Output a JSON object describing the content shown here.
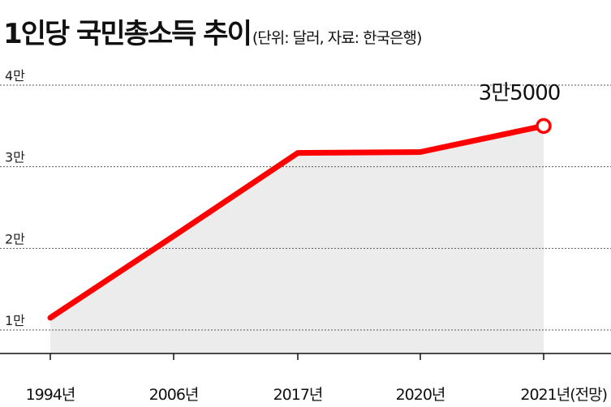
{
  "title": "1인당 국민총소득 추이",
  "subtitle": "(단위: 달러, 자료: 한국은행)",
  "chart_data": {
    "type": "line",
    "title": "1인당 국민총소득 추이",
    "subtitle": "(단위: 달러, 자료: 한국은행)",
    "categories": [
      "1994년",
      "2006년",
      "2017년",
      "2020년",
      "2021년(전망)"
    ],
    "series": [
      {
        "values": [
          11500,
          21500,
          31700,
          31800,
          35000
        ]
      }
    ],
    "y_ticks": [
      {
        "value": 10000,
        "label": "1만"
      },
      {
        "value": 20000,
        "label": "2만"
      },
      {
        "value": 30000,
        "label": "3만"
      },
      {
        "value": 40000,
        "label": "4만"
      }
    ],
    "ylim": [
      8000,
      40000
    ],
    "annotation": {
      "category": "2021년(전망)",
      "value": 35000,
      "label": "3만5000"
    },
    "grid": true,
    "grid_style": "dotted horizontal",
    "line_color": "#ff0000",
    "area_color": "#ececec"
  }
}
